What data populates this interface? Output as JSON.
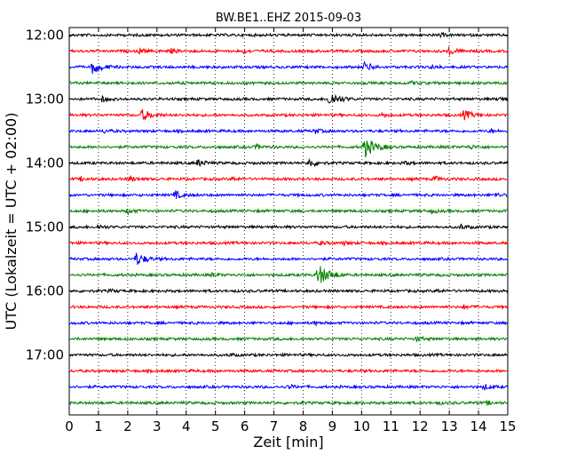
{
  "chart_data": {
    "type": "line",
    "title": "BW.BE1..EHZ 2015-09-03",
    "xlabel": "Zeit  [min]",
    "ylabel": "UTC (Lokalzeit = UTC + 02:00)",
    "xlim": [
      0,
      15
    ],
    "x_ticks": [
      "0",
      "1",
      "2",
      "3",
      "4",
      "5",
      "6",
      "7",
      "8",
      "9",
      "10",
      "11",
      "12",
      "13",
      "14",
      "15"
    ],
    "y_tick_labels": [
      "12:00",
      "13:00",
      "14:00",
      "15:00",
      "16:00",
      "17:00"
    ],
    "grid": "vertical dotted",
    "colors": [
      "#000000",
      "#ff0000",
      "#0000ff",
      "#008000"
    ],
    "series": [
      {
        "start": "12:00",
        "events": [
          [
            12.7,
            0.18
          ]
        ]
      },
      {
        "start": "12:15",
        "events": [
          [
            2.4,
            0.3
          ],
          [
            3.5,
            0.25
          ],
          [
            5.9,
            0.3
          ],
          [
            13.0,
            0.5
          ]
        ]
      },
      {
        "start": "12:30",
        "events": [
          [
            0.8,
            0.8
          ],
          [
            10.1,
            0.6
          ],
          [
            12.4,
            0.25
          ]
        ]
      },
      {
        "start": "12:45",
        "events": [
          [
            11.7,
            0.2
          ]
        ]
      },
      {
        "start": "13:00",
        "events": [
          [
            1.1,
            0.3
          ],
          [
            8.9,
            0.9
          ],
          [
            14.7,
            0.3
          ]
        ]
      },
      {
        "start": "13:15",
        "events": [
          [
            2.5,
            0.7
          ],
          [
            10.7,
            0.2
          ],
          [
            13.5,
            0.6
          ]
        ]
      },
      {
        "start": "13:30",
        "events": [
          [
            1.2,
            0.2
          ],
          [
            8.4,
            0.3
          ],
          [
            14.4,
            0.2
          ]
        ]
      },
      {
        "start": "13:45",
        "events": [
          [
            6.4,
            0.25
          ],
          [
            10.1,
            1.2
          ],
          [
            13.7,
            0.25
          ]
        ]
      },
      {
        "start": "14:00",
        "events": [
          [
            4.4,
            0.4
          ],
          [
            8.2,
            0.5
          ],
          [
            11.5,
            0.2
          ]
        ]
      },
      {
        "start": "14:15",
        "events": [
          [
            0.4,
            0.2
          ],
          [
            2.1,
            0.3
          ],
          [
            5.6,
            0.2
          ],
          [
            12.5,
            0.3
          ]
        ]
      },
      {
        "start": "14:30",
        "events": [
          [
            3.6,
            0.5
          ],
          [
            14.6,
            0.2
          ]
        ]
      },
      {
        "start": "14:45",
        "events": [
          [
            2.0,
            0.3
          ],
          [
            12.4,
            0.2
          ]
        ]
      },
      {
        "start": "15:00",
        "events": [
          [
            1.0,
            0.25
          ],
          [
            13.4,
            0.3
          ]
        ]
      },
      {
        "start": "15:15",
        "events": [
          [
            8.6,
            0.2
          ],
          [
            9.4,
            0.2
          ]
        ]
      },
      {
        "start": "15:30",
        "events": [
          [
            2.3,
            0.8
          ]
        ]
      },
      {
        "start": "15:45",
        "events": [
          [
            4.9,
            0.2
          ],
          [
            8.5,
            1.3
          ]
        ]
      },
      {
        "start": "16:00",
        "events": [
          [
            1.4,
            0.15
          ],
          [
            12.6,
            0.15
          ]
        ]
      },
      {
        "start": "16:15",
        "events": [
          [
            13.5,
            0.2
          ]
        ]
      },
      {
        "start": "16:30",
        "events": [
          [
            8.4,
            0.2
          ]
        ]
      },
      {
        "start": "16:45",
        "events": [
          [
            11.9,
            0.25
          ]
        ]
      },
      {
        "start": "17:00",
        "events": [
          [
            5.5,
            0.15
          ]
        ]
      },
      {
        "start": "17:15",
        "events": []
      },
      {
        "start": "17:30",
        "events": [
          [
            7.5,
            0.25
          ],
          [
            14.2,
            0.3
          ]
        ]
      },
      {
        "start": "17:45",
        "events": [
          [
            12.6,
            0.15
          ],
          [
            14.3,
            0.2
          ]
        ]
      }
    ]
  }
}
